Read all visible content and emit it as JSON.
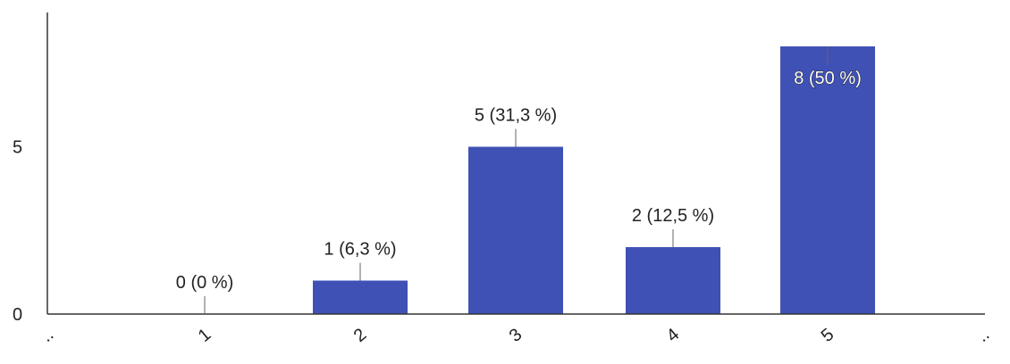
{
  "chart_data": {
    "type": "bar",
    "categories": [
      "1",
      "2",
      "3",
      "4",
      "5"
    ],
    "values": [
      0,
      1,
      5,
      2,
      8
    ],
    "data_labels": [
      "0 (0 %)",
      "1 (6,3 %)",
      "5 (31,3 %)",
      "2 (12,5 %)",
      "8 (50 %)"
    ],
    "y_ticks": [
      "0",
      "5"
    ],
    "x_edge_ticks": [
      "..",
      ".."
    ],
    "ylim": [
      0,
      8
    ],
    "grid": false,
    "colors": {
      "bar": "#3f51b5",
      "axis": "#333333",
      "leader": "#666666"
    }
  }
}
